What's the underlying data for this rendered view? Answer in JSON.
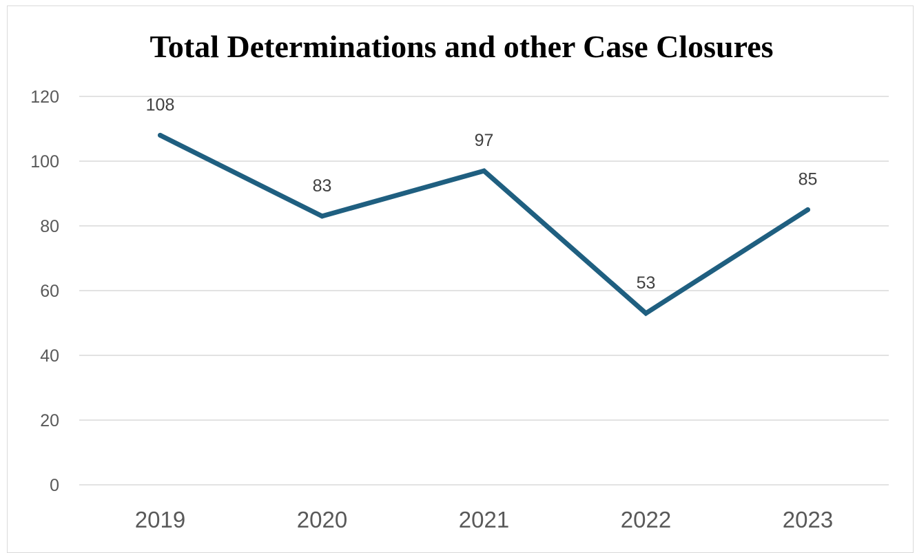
{
  "chart_data": {
    "type": "line",
    "title": "Total Determinations and other Case Closures",
    "xlabel": "",
    "ylabel": "",
    "categories": [
      "2019",
      "2020",
      "2021",
      "2022",
      "2023"
    ],
    "series": [
      {
        "values": [
          108,
          83,
          97,
          53,
          85
        ],
        "color": "#1f5f80"
      }
    ],
    "data_labels": [
      "108",
      "83",
      "97",
      "53",
      "85"
    ],
    "ylim": [
      0,
      120
    ],
    "yticks": [
      0,
      20,
      40,
      60,
      80,
      100,
      120
    ],
    "ytick_labels": [
      "0",
      "20",
      "40",
      "60",
      "80",
      "100",
      "120"
    ],
    "grid": true,
    "legend": "none"
  }
}
